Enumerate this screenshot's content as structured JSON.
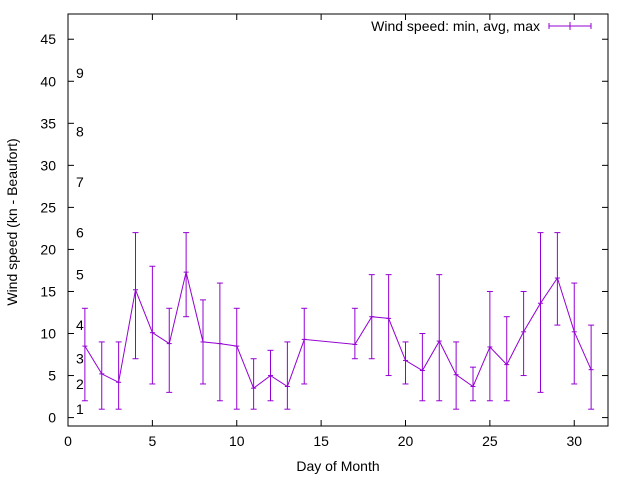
{
  "chart_data": {
    "type": "line",
    "xlabel": "Day of Month",
    "ylabel": "Wind speed (kn - Beaufort)",
    "xlim": [
      0,
      32
    ],
    "ylim": [
      -1,
      48
    ],
    "x_ticks": [
      0,
      5,
      10,
      15,
      20,
      25,
      30
    ],
    "y_ticks": [
      0,
      5,
      10,
      15,
      20,
      25,
      30,
      35,
      40,
      45
    ],
    "grid": false,
    "legend_position": "top-right",
    "series_color": "#9400d3",
    "beaufort_labels": [
      {
        "label": "1",
        "y": 1.0
      },
      {
        "label": "2",
        "y": 4.0
      },
      {
        "label": "3",
        "y": 7.0
      },
      {
        "label": "4",
        "y": 11.0
      },
      {
        "label": "5",
        "y": 17.0
      },
      {
        "label": "6",
        "y": 22.0
      },
      {
        "label": "7",
        "y": 28.0
      },
      {
        "label": "8",
        "y": 34.0
      },
      {
        "label": "9",
        "y": 41.0
      }
    ],
    "series": [
      {
        "name": "Wind speed: min, avg, max",
        "points": [
          {
            "x": 1,
            "avg": 8.5,
            "min": 2,
            "max": 13
          },
          {
            "x": 2,
            "avg": 5.2,
            "min": 1,
            "max": 9
          },
          {
            "x": 3,
            "avg": 4.2,
            "min": 1,
            "max": 9
          },
          {
            "x": 4,
            "avg": 15.2,
            "min": 7,
            "max": 22
          },
          {
            "x": 5,
            "avg": 10.1,
            "min": 4,
            "max": 18
          },
          {
            "x": 6,
            "avg": 8.8,
            "min": 3,
            "max": 13
          },
          {
            "x": 7,
            "avg": 17.3,
            "min": 12,
            "max": 22
          },
          {
            "x": 8,
            "avg": 9.0,
            "min": 4,
            "max": 14
          },
          {
            "x": 9,
            "avg": 8.8,
            "min": 2,
            "max": 16
          },
          {
            "x": 10,
            "avg": 8.5,
            "min": 1,
            "max": 13
          },
          {
            "x": 11,
            "avg": 3.5,
            "min": 1,
            "max": 7
          },
          {
            "x": 12,
            "avg": 5.0,
            "min": 2,
            "max": 8
          },
          {
            "x": 13,
            "avg": 3.7,
            "min": 1,
            "max": 9
          },
          {
            "x": 14,
            "avg": 9.3,
            "min": 4,
            "max": 13
          },
          {
            "x": 17,
            "avg": 8.7,
            "min": 7,
            "max": 13
          },
          {
            "x": 18,
            "avg": 12.0,
            "min": 7,
            "max": 17
          },
          {
            "x": 19,
            "avg": 11.8,
            "min": 5,
            "max": 17
          },
          {
            "x": 20,
            "avg": 6.8,
            "min": 4,
            "max": 9
          },
          {
            "x": 21,
            "avg": 5.6,
            "min": 2,
            "max": 10
          },
          {
            "x": 22,
            "avg": 9.1,
            "min": 2,
            "max": 17
          },
          {
            "x": 23,
            "avg": 5.1,
            "min": 1,
            "max": 9
          },
          {
            "x": 24,
            "avg": 3.7,
            "min": 2,
            "max": 6
          },
          {
            "x": 25,
            "avg": 8.4,
            "min": 2,
            "max": 15
          },
          {
            "x": 26,
            "avg": 6.3,
            "min": 2,
            "max": 12
          },
          {
            "x": 27,
            "avg": 10.2,
            "min": 5,
            "max": 15
          },
          {
            "x": 28,
            "avg": 13.6,
            "min": 3,
            "max": 22
          },
          {
            "x": 29,
            "avg": 16.6,
            "min": 11,
            "max": 22
          },
          {
            "x": 30,
            "avg": 10.2,
            "min": 4,
            "max": 16
          },
          {
            "x": 31,
            "avg": 5.7,
            "min": 1,
            "max": 11
          }
        ]
      }
    ]
  }
}
